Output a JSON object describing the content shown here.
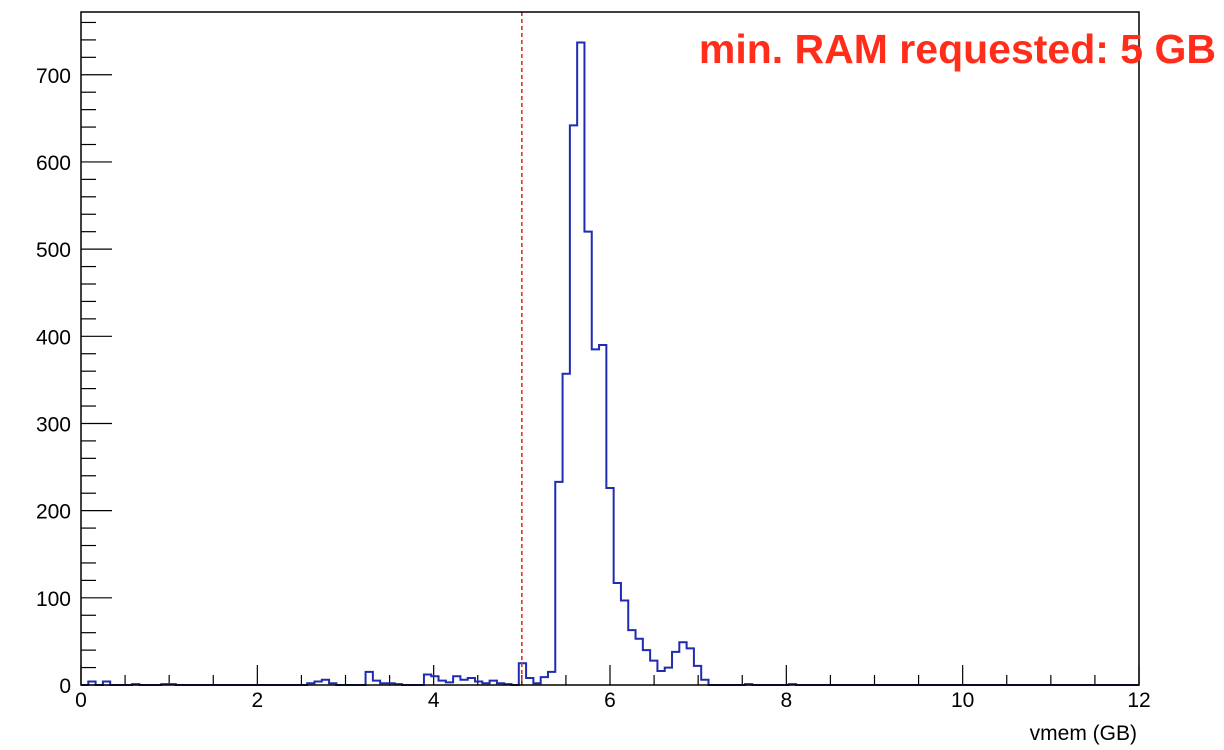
{
  "chart_data": {
    "type": "histogram",
    "title": "",
    "xlabel": "vmem (GB)",
    "ylabel": "",
    "xlim": [
      0,
      12
    ],
    "ylim": [
      0,
      772
    ],
    "bin_width": 0.0833,
    "x_ticks": [
      0,
      2,
      4,
      6,
      8,
      10,
      12
    ],
    "y_ticks": [
      0,
      100,
      200,
      300,
      400,
      500,
      600,
      700
    ],
    "x_tick_labels": [
      "0",
      "2",
      "4",
      "6",
      "8",
      "10",
      "12"
    ],
    "y_tick_labels": [
      "0",
      "100",
      "200",
      "300",
      "400",
      "500",
      "600",
      "700"
    ],
    "grid": false,
    "line_color": "#1f2bb0",
    "series": [
      {
        "values": [
          0,
          4,
          0,
          4,
          0,
          0,
          0,
          1,
          0,
          0,
          0,
          1,
          1,
          0,
          0,
          0,
          0,
          0,
          0,
          0,
          0,
          0,
          0,
          0,
          0,
          0,
          0,
          0,
          0,
          0,
          0,
          2,
          4,
          6,
          2,
          0,
          0,
          0,
          0,
          15,
          5,
          2,
          2,
          1,
          0,
          0,
          0,
          12,
          10,
          5,
          3,
          10,
          6,
          8,
          4,
          2,
          5,
          2,
          1,
          0,
          25,
          8,
          2,
          9,
          15,
          233,
          357,
          642,
          737,
          520,
          385,
          390,
          226,
          117,
          97,
          63,
          53,
          40,
          28,
          16,
          20,
          38,
          49,
          42,
          22,
          6,
          0,
          0,
          0,
          0,
          0,
          1,
          0,
          0,
          0,
          0,
          0,
          1,
          0,
          0,
          0,
          0,
          0,
          0,
          0,
          0,
          0,
          0,
          0,
          0,
          0,
          0,
          0,
          0,
          0,
          0,
          0,
          0,
          0,
          0,
          0,
          0,
          0,
          0,
          0,
          0,
          0,
          0,
          0,
          0,
          0,
          0,
          0,
          0,
          0,
          0,
          0,
          0,
          0,
          0,
          0,
          0,
          0,
          0,
          0
        ]
      }
    ],
    "reference_line": {
      "x": 5.0,
      "style": "dashed",
      "color": "#e8321e"
    },
    "annotation": {
      "text": "min. RAM requested: 5 GB",
      "color": "#ff2d1a"
    }
  }
}
